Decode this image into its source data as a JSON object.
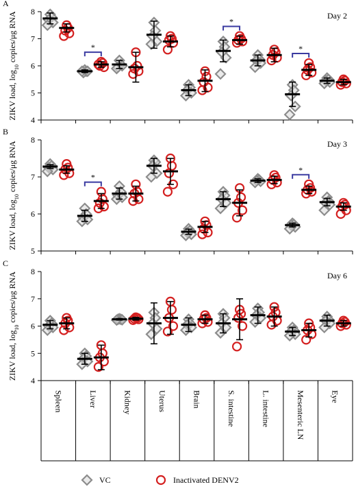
{
  "chart_data": [
    {
      "type": "strip",
      "panel_label": "A",
      "annotation": "Day 2",
      "ylabel": {
        "text": "ZIKV load, log",
        "sub": "10",
        "rest": " copies/μg RNA"
      },
      "ylim": [
        4,
        8
      ],
      "yticks": [
        4,
        5,
        6,
        7,
        8
      ],
      "significance_label": "*",
      "significant_categories": [
        1,
        5,
        7
      ],
      "series": [
        {
          "color": "#8c8c8c",
          "marker": "diamond",
          "values": [
            7.75,
            5.8,
            6.05,
            7.15,
            5.1,
            6.55,
            6.2,
            4.95,
            5.45
          ],
          "errors": [
            0.2,
            0.05,
            0.15,
            0.5,
            0.2,
            0.4,
            0.2,
            0.45,
            0.1
          ],
          "points": [
            [
              7.9,
              7.8,
              7.7,
              7.6,
              7.5
            ],
            [
              5.85,
              5.8,
              5.75,
              5.8,
              5.8
            ],
            [
              6.2,
              6.05,
              5.95,
              6.0,
              5.9
            ],
            [
              7.6,
              7.3,
              7.1,
              6.9,
              6.8
            ],
            [
              5.3,
              5.2,
              5.1,
              5.0,
              4.9
            ],
            [
              6.9,
              6.7,
              6.5,
              6.3,
              5.7
            ],
            [
              6.4,
              6.25,
              6.2,
              6.1,
              5.95
            ],
            [
              5.3,
              5.1,
              4.9,
              4.5,
              4.2
            ],
            [
              5.55,
              5.5,
              5.45,
              5.4,
              5.35
            ]
          ]
        },
        {
          "color": "#d42020",
          "marker": "circle",
          "values": [
            7.4,
            6.05,
            5.95,
            6.9,
            5.45,
            6.95,
            6.4,
            5.85,
            5.4
          ],
          "errors": [
            0.15,
            0.1,
            0.55,
            0.2,
            0.4,
            0.15,
            0.25,
            0.2,
            0.1
          ],
          "points": [
            [
              7.5,
              7.4,
              7.3,
              7.2,
              7.1
            ],
            [
              6.15,
              6.1,
              6.0,
              5.95,
              6.05
            ],
            [
              6.5,
              6.0,
              5.9,
              5.8,
              5.7
            ],
            [
              7.1,
              7.0,
              6.95,
              6.85,
              6.6
            ],
            [
              5.8,
              5.6,
              5.4,
              5.2,
              5.1
            ],
            [
              7.1,
              7.0,
              6.95,
              6.9,
              6.85
            ],
            [
              6.6,
              6.5,
              6.4,
              6.3,
              6.2
            ],
            [
              6.1,
              5.95,
              5.85,
              5.75,
              5.65
            ],
            [
              5.5,
              5.45,
              5.4,
              5.35,
              5.3
            ]
          ]
        }
      ]
    },
    {
      "type": "strip",
      "panel_label": "B",
      "annotation": "Day 3",
      "ylabel": {
        "text": "ZIKV load, log",
        "sub": "10",
        "rest": " copies/μg RNA"
      },
      "ylim": [
        5,
        8
      ],
      "yticks": [
        5,
        6,
        7,
        8
      ],
      "significance_label": "*",
      "significant_categories": [
        1,
        7
      ],
      "series": [
        {
          "color": "#8c8c8c",
          "marker": "diamond",
          "values": [
            7.28,
            5.95,
            6.55,
            7.3,
            5.52,
            6.4,
            6.9,
            5.7,
            6.32
          ],
          "errors": [
            0.05,
            0.15,
            0.15,
            0.2,
            0.07,
            0.2,
            0.05,
            0.05,
            0.1
          ],
          "points": [
            [
              7.35,
              7.3,
              7.25,
              7.2,
              7.15
            ],
            [
              6.15,
              6.0,
              5.9,
              5.85,
              5.8
            ],
            [
              6.75,
              6.6,
              6.5,
              6.45,
              6.4
            ],
            [
              7.45,
              7.4,
              7.3,
              7.1,
              7.0
            ],
            [
              5.6,
              5.55,
              5.5,
              5.45,
              5.42
            ],
            [
              6.6,
              6.5,
              6.4,
              6.3,
              6.15
            ],
            [
              6.95,
              6.92,
              6.9,
              6.88,
              6.85
            ],
            [
              5.75,
              5.72,
              5.7,
              5.65,
              5.6
            ],
            [
              6.45,
              6.35,
              6.3,
              6.25,
              6.1
            ]
          ]
        },
        {
          "color": "#d42020",
          "marker": "circle",
          "values": [
            7.2,
            6.35,
            6.55,
            7.15,
            5.65,
            6.3,
            6.92,
            6.65,
            6.2
          ],
          "errors": [
            0.1,
            0.2,
            0.2,
            0.35,
            0.15,
            0.35,
            0.1,
            0.1,
            0.1
          ],
          "points": [
            [
              7.35,
              7.25,
              7.2,
              7.1,
              7.05
            ],
            [
              6.6,
              6.4,
              6.3,
              6.2,
              6.15
            ],
            [
              6.8,
              6.6,
              6.55,
              6.4,
              6.35
            ],
            [
              7.5,
              7.3,
              7.1,
              6.8,
              6.6
            ],
            [
              5.8,
              5.7,
              5.6,
              5.5,
              5.45
            ],
            [
              6.7,
              6.45,
              6.3,
              6.1,
              5.9
            ],
            [
              7.05,
              6.98,
              6.92,
              6.85,
              6.8
            ],
            [
              6.8,
              6.7,
              6.65,
              6.6,
              6.55
            ],
            [
              6.3,
              6.25,
              6.2,
              6.1,
              6.0
            ]
          ]
        }
      ]
    },
    {
      "type": "strip",
      "panel_label": "C",
      "annotation": "Day 6",
      "ylabel": {
        "text": "ZIKV load, log",
        "sub": "10",
        "rest": " copies/μg RNA"
      },
      "ylim": [
        4,
        8
      ],
      "yticks": [
        4,
        5,
        6,
        7,
        8
      ],
      "categories": [
        "Spleen",
        "Liver",
        "Kidney",
        "Uterus",
        "Brain",
        "S. intestine",
        "L. intestine",
        "Mesenteric LN",
        "Eye"
      ],
      "series": [
        {
          "name": "VC",
          "color": "#8c8c8c",
          "marker": "diamond",
          "values": [
            6.05,
            4.8,
            6.25,
            6.1,
            6.05,
            6.1,
            6.4,
            5.8,
            6.2
          ],
          "errors": [
            0.15,
            0.2,
            0.03,
            0.75,
            0.25,
            0.35,
            0.3,
            0.15,
            0.2
          ],
          "points": [
            [
              6.2,
              6.1,
              6.0,
              5.95,
              5.85
            ],
            [
              5.0,
              4.9,
              4.8,
              4.7,
              4.6
            ],
            [
              6.27,
              6.25,
              6.25,
              6.23,
              6.22
            ],
            [
              6.5,
              6.3,
              6.1,
              5.9,
              5.7
            ],
            [
              6.25,
              6.1,
              6.05,
              5.95,
              5.85
            ],
            [
              6.45,
              6.3,
              6.1,
              5.95,
              5.75
            ],
            [
              6.65,
              6.5,
              6.4,
              6.3,
              6.15
            ],
            [
              5.95,
              5.85,
              5.8,
              5.7,
              5.65
            ],
            [
              6.35,
              6.25,
              6.2,
              6.1,
              5.95
            ]
          ]
        },
        {
          "name": "Inactivated DENV2",
          "color": "#d42020",
          "marker": "circle",
          "values": [
            6.1,
            4.85,
            6.27,
            6.3,
            6.25,
            6.25,
            6.35,
            5.85,
            6.1
          ],
          "errors": [
            0.2,
            0.45,
            0.05,
            0.6,
            0.15,
            0.75,
            0.35,
            0.25,
            0.1
          ],
          "points": [
            [
              6.3,
              6.2,
              6.1,
              5.95,
              5.85
            ],
            [
              5.3,
              5.0,
              4.85,
              4.7,
              4.5
            ],
            [
              6.32,
              6.3,
              6.27,
              6.25,
              6.22
            ],
            [
              6.9,
              6.6,
              6.3,
              6.0,
              5.8
            ],
            [
              6.4,
              6.3,
              6.25,
              6.15,
              6.1
            ],
            [
              6.6,
              6.45,
              6.3,
              6.0,
              5.25
            ],
            [
              6.7,
              6.5,
              6.35,
              6.2,
              6.05
            ],
            [
              6.1,
              5.95,
              5.85,
              5.7,
              5.5
            ],
            [
              6.2,
              6.15,
              6.1,
              6.05,
              6.0
            ]
          ]
        }
      ]
    }
  ]
}
